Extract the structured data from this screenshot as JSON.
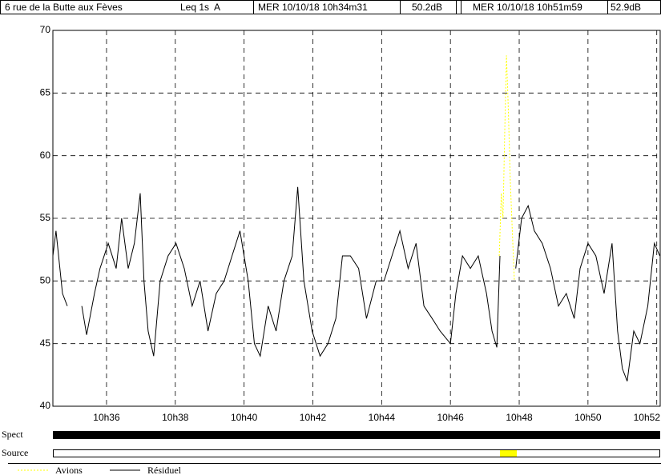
{
  "header": {
    "location": "6 rue de la Butte aux Fèves",
    "index": "Leq 1s  A",
    "start": "MER 10/10/18 10h34m31",
    "start_level": "50.2dB",
    "end": "MER 10/10/18 10h51m59",
    "end_level": "52.9dB"
  },
  "chart_data": {
    "type": "line",
    "xlim": [
      34.44,
      52.1
    ],
    "ylim": [
      40,
      70
    ],
    "yticks": [
      40,
      45,
      50,
      55,
      60,
      65,
      70
    ],
    "xticks": [
      {
        "value": 36,
        "label": "10h36"
      },
      {
        "value": 38,
        "label": "10h38"
      },
      {
        "value": 40,
        "label": "10h40"
      },
      {
        "value": 42,
        "label": "10h42"
      },
      {
        "value": 44,
        "label": "10h44"
      },
      {
        "value": 46,
        "label": "10h46"
      },
      {
        "value": 48,
        "label": "10h48"
      },
      {
        "value": 50,
        "label": "10h50"
      },
      {
        "value": 52,
        "label": "10h52"
      }
    ],
    "grid": true,
    "series": [
      {
        "name": "Avions",
        "color": "#ffff00",
        "dashed": true,
        "x": [
          47.42,
          47.48,
          47.53,
          47.58,
          47.63,
          47.68,
          47.74,
          47.8,
          47.86
        ],
        "values": [
          52,
          57,
          55,
          62,
          68,
          64,
          58,
          54,
          50
        ]
      },
      {
        "name": "Résiduel",
        "color": "#000000",
        "dashed": false,
        "x": [
          34.44,
          34.53,
          34.72,
          34.86,
          35.07,
          35.28,
          35.42,
          35.65,
          35.81,
          36.05,
          36.28,
          36.44,
          36.63,
          36.81,
          36.98,
          37.09,
          37.21,
          37.37,
          37.56,
          37.79,
          38.02,
          38.26,
          38.49,
          38.72,
          38.95,
          39.19,
          39.42,
          39.65,
          39.88,
          40.12,
          40.3,
          40.47,
          40.7,
          40.93,
          41.16,
          41.4,
          41.56,
          41.74,
          41.98,
          42.21,
          42.44,
          42.67,
          42.86,
          43.09,
          43.33,
          43.56,
          43.84,
          44.07,
          44.3,
          44.53,
          44.77,
          45.0,
          45.23,
          45.47,
          45.7,
          46.0,
          46.16,
          46.35,
          46.58,
          46.81,
          47.05,
          47.21,
          47.35,
          47.44,
          47.67,
          47.9,
          48.07,
          48.26,
          48.44,
          48.67,
          48.91,
          49.14,
          49.37,
          49.6,
          49.77,
          50.0,
          50.23,
          50.47,
          50.7,
          50.86,
          51.0,
          51.14,
          51.33,
          51.51,
          51.74,
          51.93,
          52.09
        ],
        "values": [
          52,
          54,
          49,
          48,
          null,
          48,
          45.7,
          49,
          51,
          53,
          51,
          55,
          51,
          53,
          57,
          50,
          46,
          44,
          50,
          52,
          53,
          51,
          48,
          50,
          46,
          49,
          50,
          52,
          54,
          50,
          45,
          44,
          48,
          46,
          50,
          52,
          57.5,
          50,
          46,
          44,
          45,
          47,
          52,
          52,
          51,
          47,
          50,
          50,
          52,
          54,
          51,
          53,
          48,
          47,
          46,
          45,
          49,
          52,
          51,
          52,
          49,
          46,
          44.7,
          52,
          null,
          51,
          55,
          56,
          54,
          53,
          51,
          48,
          49,
          47,
          51,
          53,
          52,
          49,
          53,
          46,
          43,
          42,
          46,
          45,
          48,
          53,
          52
        ]
      }
    ],
    "rows": [
      "Spect",
      "Source"
    ],
    "source_events": [
      {
        "start": 47.44,
        "end": 47.93,
        "color": "#ffff00"
      }
    ]
  }
}
